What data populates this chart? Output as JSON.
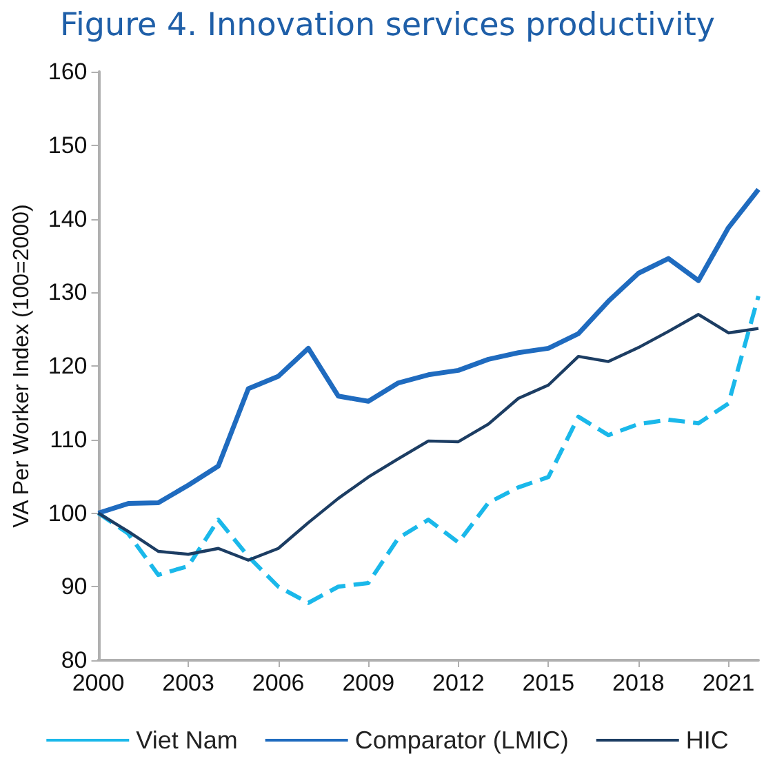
{
  "chart_data": {
    "type": "line",
    "title": "Figure 4. Innovation services productivity",
    "ylabel": "VA Per Worker Index (100=2000)",
    "categories": [
      "2000",
      null,
      null,
      "2003",
      null,
      null,
      "2006",
      null,
      null,
      "2009",
      null,
      null,
      "2012",
      null,
      null,
      "2015",
      null,
      null,
      "2018",
      null,
      null,
      "2021",
      null
    ],
    "series": [
      {
        "name": "Viet Nam",
        "color": "#1ab8ea",
        "line_style": "dashed",
        "values": [
          100,
          97.2,
          91.6,
          92.8,
          99.1,
          94.1,
          90.0,
          87.8,
          90.0,
          90.5,
          96.6,
          99.1,
          96.0,
          101.4,
          103.5,
          104.9,
          113.1,
          110.6,
          112.1,
          112.7,
          112.2,
          114.9,
          129.5
        ]
      },
      {
        "name": "Comparator (LMIC)",
        "color": "#1f6bbf",
        "line_style": "solid",
        "values": [
          100,
          101.3,
          101.4,
          103.8,
          106.4,
          116.9,
          118.6,
          122.4,
          115.9,
          115.2,
          117.7,
          118.8,
          119.4,
          120.9,
          121.8,
          122.4,
          124.4,
          128.8,
          132.6,
          134.6,
          131.6,
          138.8,
          144.0
        ]
      },
      {
        "name": "HIC",
        "color": "#1c3d63",
        "line_style": "solid",
        "values": [
          100,
          97.5,
          94.8,
          94.4,
          95.2,
          93.6,
          95.2,
          98.7,
          102.0,
          104.9,
          107.4,
          109.8,
          109.7,
          112.1,
          115.6,
          117.4,
          121.3,
          120.6,
          122.5,
          124.7,
          127.0,
          124.5,
          125.1
        ]
      }
    ],
    "ylim": [
      80,
      160
    ],
    "yticks": [
      80,
      90,
      100,
      110,
      120,
      130,
      140,
      150,
      160
    ],
    "grid": false,
    "legend": "bottom",
    "marker": "none"
  }
}
